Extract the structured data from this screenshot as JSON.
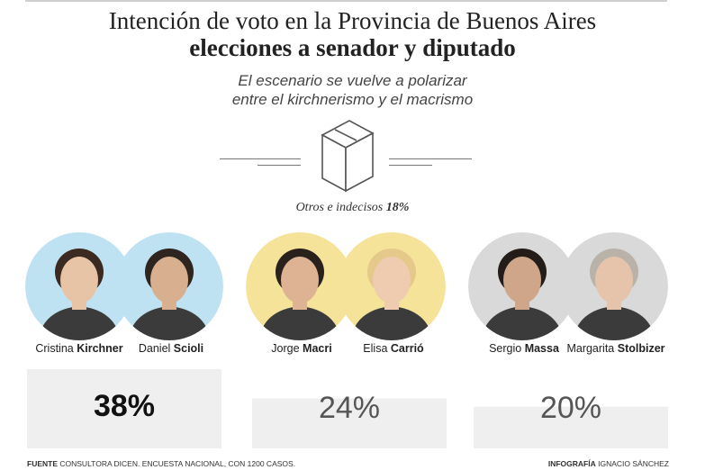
{
  "header": {
    "title_line1": "Intención de voto en la Provincia de Buenos Aires",
    "title_line2": "elecciones a senador y diputado",
    "subtitle_line1": "El escenario se vuelve a polarizar",
    "subtitle_line2": "entre el kirchnerismo y el macrismo"
  },
  "others": {
    "label": "Otros e indecisos",
    "value": "18%"
  },
  "candidates": [
    {
      "first": "Cristina",
      "last": "Kirchner",
      "color": "#bfe2f2",
      "skin": "#e8c4a6",
      "hair": "#3a2a22"
    },
    {
      "first": "Daniel",
      "last": "Scioli",
      "color": "#bfe2f2",
      "skin": "#d9b08f",
      "hair": "#2e2420"
    },
    {
      "first": "Jorge",
      "last": "Macri",
      "color": "#f6e39a",
      "skin": "#deb393",
      "hair": "#2a211c"
    },
    {
      "first": "Elisa",
      "last": "Carrió",
      "color": "#f6e39a",
      "skin": "#efcbb0",
      "hair": "#e5c98a"
    },
    {
      "first": "Sergio",
      "last": "Massa",
      "color": "#d9d9d9",
      "skin": "#cfa689",
      "hair": "#231c18"
    },
    {
      "first": "Margarita",
      "last": "Stolbizer",
      "color": "#d9d9d9",
      "skin": "#e6c4ab",
      "hair": "#b9b2a8"
    }
  ],
  "chart_data": {
    "type": "bar",
    "categories": [
      "Cristina Kirchner / Daniel Scioli",
      "Jorge Macri / Elisa Carrió",
      "Sergio Massa / Margarita Stolbizer"
    ],
    "values": [
      38,
      24,
      20
    ],
    "labels": [
      "38%",
      "24%",
      "20%"
    ],
    "ylim": [
      0,
      38
    ],
    "bar_color": "#efefef"
  },
  "footer": {
    "source_label": "FUENTE",
    "source_text": "CONSULTORA DICEN. ENCUESTA NACIONAL, CON 1200 CASOS.",
    "credit_label": "INFOGRAFÍA",
    "credit_text": "IGNACIO SÁNCHEZ"
  }
}
